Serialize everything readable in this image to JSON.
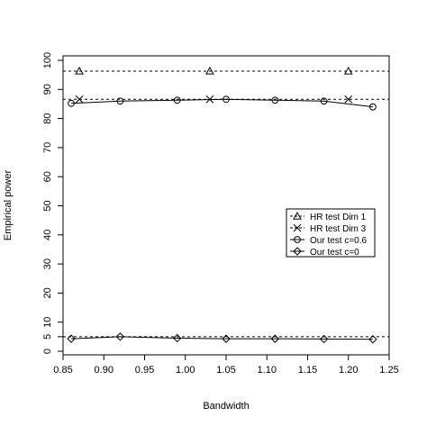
{
  "chart_data": {
    "type": "line",
    "x_label": "Bandwidth",
    "y_label": "Empirical power",
    "xlim": [
      0.85,
      1.25
    ],
    "ylim": [
      0,
      100
    ],
    "xticks": [
      0.85,
      {
        "value": 0.9,
        "label": "0.90"
      },
      0.95,
      {
        "value": 1.0,
        "label": "1.00"
      },
      1.05,
      {
        "value": 1.1,
        "label": "1.10"
      },
      1.15,
      {
        "value": 1.2,
        "label": "1.20"
      },
      1.25
    ],
    "yticks": [
      0,
      5,
      10,
      20,
      30,
      40,
      50,
      60,
      70,
      80,
      90,
      100
    ],
    "reference_lines": [
      96.3,
      86.6,
      5
    ],
    "legend_position": "right",
    "series": [
      {
        "name": "HR test Dim 1",
        "color": "#000000",
        "marker": "triangle",
        "line": "dashed",
        "x": [
          0.87,
          1.03,
          1.2
        ],
        "values": [
          96.3,
          96.3,
          96.3
        ]
      },
      {
        "name": "HR test Dim 3",
        "color": "#000000",
        "marker": "cross",
        "line": "dashed",
        "x": [
          0.87,
          1.03,
          1.2
        ],
        "values": [
          86.6,
          86.6,
          86.6
        ]
      },
      {
        "name": "Our test c=0.6",
        "color": "#000000",
        "marker": "circle",
        "line": "solid",
        "x": [
          0.86,
          0.92,
          0.99,
          1.05,
          1.11,
          1.17,
          1.23
        ],
        "values": [
          85.2,
          86,
          86.3,
          86.6,
          86.3,
          86,
          84
        ]
      },
      {
        "name": "Our test c=0",
        "color": "#000000",
        "marker": "diamond",
        "line": "solid",
        "x": [
          0.86,
          0.92,
          0.99,
          1.05,
          1.11,
          1.17,
          1.23
        ],
        "values": [
          4.3,
          5,
          4.5,
          4.3,
          4.3,
          4.2,
          4.1
        ]
      }
    ]
  }
}
